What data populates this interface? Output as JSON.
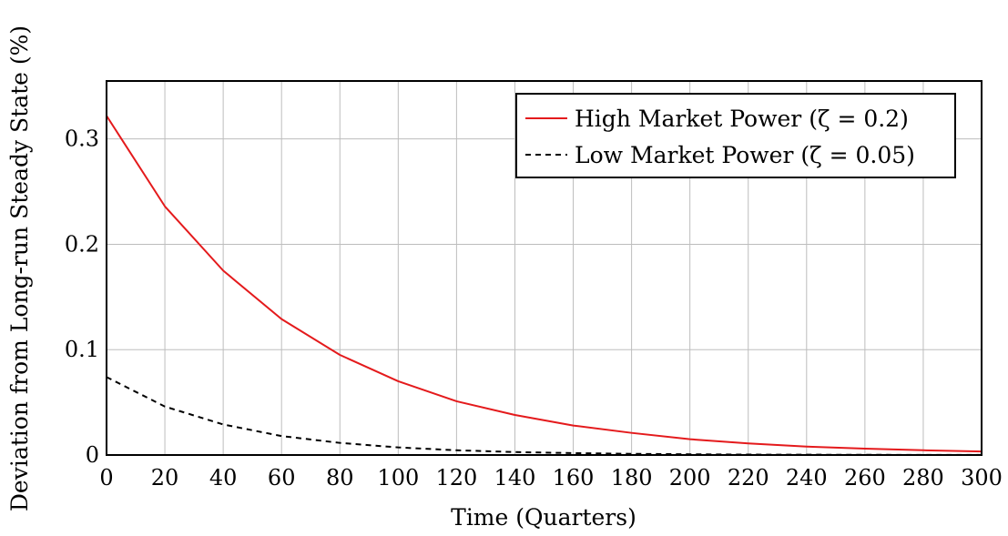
{
  "chart_data": {
    "type": "line",
    "xlabel": "Time (Quarters)",
    "ylabel": "Deviation from Long-run Steady State (%)",
    "xlim": [
      0,
      300
    ],
    "ylim": [
      0,
      0.355
    ],
    "grid": true,
    "legend_position": "top-right",
    "x_ticks": [
      0,
      20,
      40,
      60,
      80,
      100,
      120,
      140,
      160,
      180,
      200,
      220,
      240,
      260,
      280,
      300
    ],
    "y_ticks": [
      0,
      0.1,
      0.2,
      0.3
    ],
    "x_tick_labels": [
      "0",
      "20",
      "40",
      "60",
      "80",
      "100",
      "120",
      "140",
      "160",
      "180",
      "200",
      "220",
      "240",
      "260",
      "280",
      "300"
    ],
    "y_tick_labels": [
      "0",
      "0.1",
      "0.2",
      "0.3"
    ],
    "series": [
      {
        "name": "High Market Power (ζ = 0.2)",
        "color": "#e41a1c",
        "style": "solid",
        "x": [
          0,
          20,
          40,
          60,
          80,
          100,
          120,
          140,
          160,
          180,
          200,
          220,
          240,
          260,
          280,
          300
        ],
        "values": [
          0.322,
          0.236,
          0.175,
          0.129,
          0.095,
          0.07,
          0.051,
          0.038,
          0.028,
          0.021,
          0.015,
          0.011,
          0.008,
          0.006,
          0.0045,
          0.0033
        ]
      },
      {
        "name": "Low Market Power (ζ = 0.05)",
        "color": "#000000",
        "style": "dashed",
        "x": [
          0,
          20,
          40,
          60,
          80,
          100,
          120,
          140,
          160,
          180,
          200,
          220,
          240,
          260,
          280,
          300
        ],
        "values": [
          0.074,
          0.046,
          0.029,
          0.018,
          0.0115,
          0.0072,
          0.0045,
          0.0028,
          0.0018,
          0.0011,
          0.0007,
          0.0004,
          0.0003,
          0.0002,
          0.0001,
          0.0001
        ]
      }
    ]
  }
}
